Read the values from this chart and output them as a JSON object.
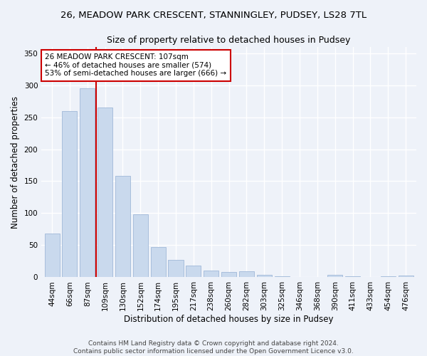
{
  "title_line1": "26, MEADOW PARK CRESCENT, STANNINGLEY, PUDSEY, LS28 7TL",
  "title_line2": "Size of property relative to detached houses in Pudsey",
  "xlabel": "Distribution of detached houses by size in Pudsey",
  "ylabel": "Number of detached properties",
  "categories": [
    "44sqm",
    "66sqm",
    "87sqm",
    "109sqm",
    "130sqm",
    "152sqm",
    "174sqm",
    "195sqm",
    "217sqm",
    "238sqm",
    "260sqm",
    "282sqm",
    "303sqm",
    "325sqm",
    "346sqm",
    "368sqm",
    "390sqm",
    "411sqm",
    "433sqm",
    "454sqm",
    "476sqm"
  ],
  "values": [
    68,
    260,
    295,
    265,
    158,
    98,
    47,
    27,
    18,
    10,
    8,
    9,
    4,
    2,
    1,
    0,
    4,
    2,
    1,
    2,
    3
  ],
  "bar_color": "#c9d9ed",
  "bar_edge_color": "#a0b8d8",
  "vline_color": "#cc0000",
  "vline_index": 2.5,
  "annotation_text": "26 MEADOW PARK CRESCENT: 107sqm\n← 46% of detached houses are smaller (574)\n53% of semi-detached houses are larger (666) →",
  "annotation_box_color": "#ffffff",
  "annotation_box_edge": "#cc0000",
  "ylim": [
    0,
    360
  ],
  "yticks": [
    0,
    50,
    100,
    150,
    200,
    250,
    300,
    350
  ],
  "footer": "Contains HM Land Registry data © Crown copyright and database right 2024.\nContains public sector information licensed under the Open Government Licence v3.0.",
  "background_color": "#eef2f9",
  "grid_color": "#ffffff",
  "title_fontsize": 9.5,
  "subtitle_fontsize": 9,
  "axis_label_fontsize": 8.5,
  "tick_fontsize": 7.5,
  "annotation_fontsize": 7.5,
  "footer_fontsize": 6.5
}
